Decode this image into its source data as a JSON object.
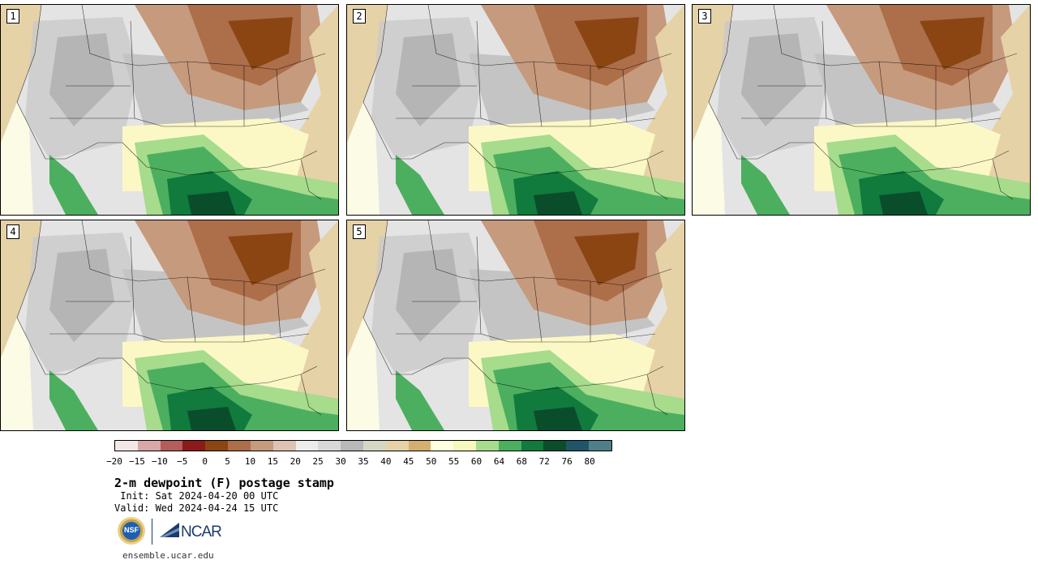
{
  "panels": [
    {
      "label": "1"
    },
    {
      "label": "2"
    },
    {
      "label": "3"
    },
    {
      "label": "4"
    },
    {
      "label": "5"
    }
  ],
  "colorbar": {
    "colors": [
      "#f3e8e8",
      "#d9a7a7",
      "#b55c5c",
      "#8b1a1a",
      "#8b4513",
      "#ad6e4a",
      "#c69a7d",
      "#dfc3b2",
      "#ececec",
      "#d8d8d8",
      "#b8b8b8",
      "#d6d6c4",
      "#e6d2a7",
      "#d4b06e",
      "#ffffe0",
      "#f6f9bd",
      "#a6dc8c",
      "#4caf5f",
      "#117a3d",
      "#0a4d2b",
      "#1f5566",
      "#4f7f88"
    ],
    "ticks": [
      "−20",
      "−15",
      "−10",
      "−5",
      "0",
      "5",
      "10",
      "15",
      "20",
      "25",
      "30",
      "35",
      "40",
      "45",
      "50",
      "55",
      "60",
      "64",
      "68",
      "72",
      "76",
      "80"
    ]
  },
  "title": "2-m dewpoint (F) postage stamp",
  "init": " Init: Sat 2024-04-20 00 UTC",
  "valid": "Valid: Wed 2024-04-24 15 UTC",
  "logos": {
    "nsf": "NSF",
    "ncar": "NCAR"
  },
  "site": "ensemble.ucar.edu"
}
